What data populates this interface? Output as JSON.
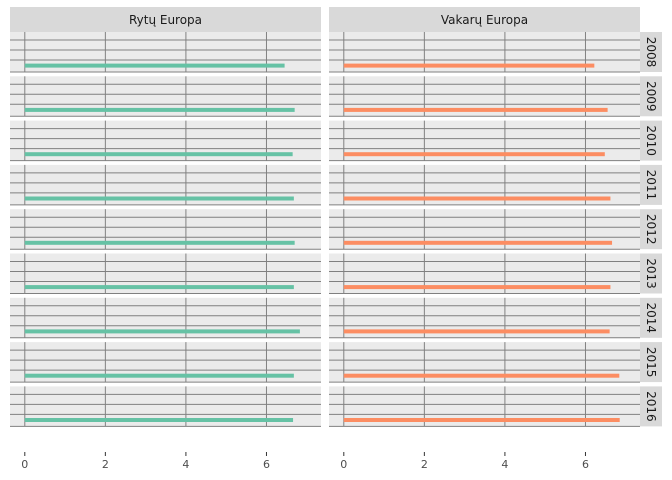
{
  "chart_data": {
    "type": "bar",
    "orientation": "horizontal",
    "facet_columns": [
      "Rytų Europa",
      "Vakarų Europa"
    ],
    "facet_rows": [
      "2008",
      "2009",
      "2010",
      "2011",
      "2012",
      "2013",
      "2014",
      "2015",
      "2016"
    ],
    "xlim": [
      0,
      7.2
    ],
    "x_ticks": [
      0,
      2,
      4,
      6
    ],
    "x_tick_labels": [
      "0",
      "2",
      "4",
      "6"
    ],
    "grid": true,
    "series": [
      {
        "facet": "Rytų Europa",
        "color": "#66c2a5",
        "values": [
          6.45,
          6.7,
          6.65,
          6.68,
          6.7,
          6.68,
          6.83,
          6.68,
          6.66
        ]
      },
      {
        "facet": "Vakarų Europa",
        "color": "#fc8d62",
        "values": [
          6.22,
          6.55,
          6.48,
          6.62,
          6.66,
          6.62,
          6.6,
          6.84,
          6.85
        ]
      }
    ],
    "colors": {
      "panel_background": "#ebebeb",
      "grid": "#808080",
      "strip_background": "#d9d9d9"
    }
  }
}
